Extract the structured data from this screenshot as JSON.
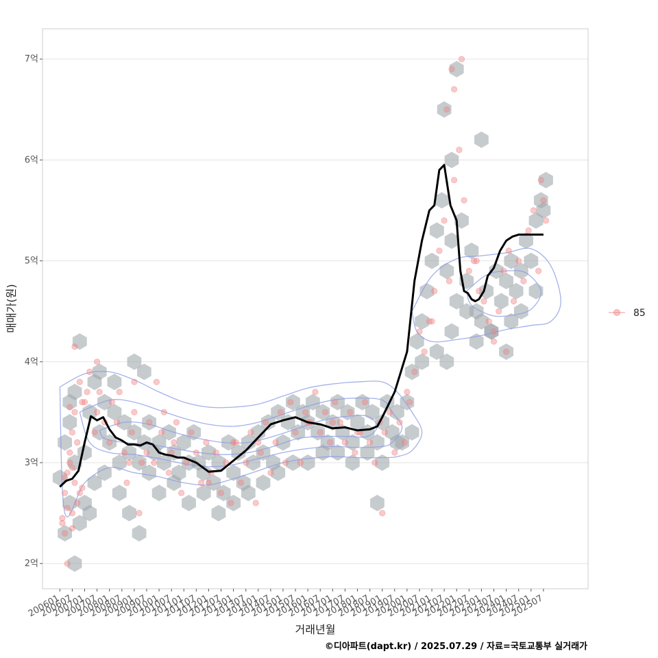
{
  "chart_data": {
    "type": "scatter",
    "xlabel": "거래년월",
    "ylabel": "매매가(원)",
    "caption": "©디아파트(dapt.kr) / 2025.07.29 / 자료=국토교통부 실거래가",
    "x_tick_labels": [
      "200601",
      "200607",
      "200701",
      "200707",
      "200801",
      "200807",
      "200901",
      "200907",
      "201001",
      "201007",
      "201101",
      "201107",
      "201201",
      "201207",
      "201301",
      "201307",
      "201401",
      "201407",
      "201501",
      "201507",
      "201601",
      "201607",
      "201701",
      "201707",
      "201801",
      "201807",
      "201901",
      "201907",
      "202001",
      "202007",
      "202101",
      "202107",
      "202201",
      "202207",
      "202301",
      "202307",
      "202401",
      "202407",
      "202501",
      "202507"
    ],
    "y_ticks": [
      2,
      3,
      4,
      5,
      6,
      7
    ],
    "y_tick_labels": [
      "2억",
      "3억",
      "4억",
      "5억",
      "6억",
      "7억"
    ],
    "y_unit": "억",
    "xlim": [
      2005.3,
      2027.3
    ],
    "ylim": [
      1.75,
      7.3
    ],
    "grid": true,
    "legend": {
      "position": "right",
      "entries": [
        {
          "label": "85",
          "color": "#f08080"
        }
      ]
    },
    "colors": {
      "points": "#f08080",
      "hexbin": "#a0a8ae",
      "contour": "#8c9ee6",
      "trend": "#000000",
      "grid": "#e3e3e3",
      "frame": "#cccccc"
    },
    "trend_line": {
      "x": [
        2006.0,
        2006.25,
        2006.5,
        2006.75,
        2007.0,
        2007.25,
        2007.5,
        2007.75,
        2008.0,
        2008.25,
        2008.5,
        2008.75,
        2009.0,
        2009.25,
        2009.5,
        2009.75,
        2010.0,
        2010.25,
        2010.5,
        2010.75,
        2011.0,
        2011.5,
        2012.0,
        2012.5,
        2012.8,
        2013.0,
        2013.5,
        2014.0,
        2014.5,
        2015.0,
        2015.5,
        2016.0,
        2016.5,
        2017.0,
        2017.5,
        2018.0,
        2018.5,
        2018.8,
        2019.0,
        2019.5,
        2020.0,
        2020.3,
        2020.6,
        2020.9,
        2021.1,
        2021.3,
        2021.5,
        2021.75,
        2022.0,
        2022.15,
        2022.3,
        2022.45,
        2022.6,
        2022.75,
        2022.9,
        2023.1,
        2023.25,
        2023.5,
        2023.75,
        2024.0,
        2024.25,
        2024.5,
        2024.75,
        2025.0,
        2025.25,
        2025.5
      ],
      "y": [
        2.76,
        2.82,
        2.84,
        2.92,
        3.2,
        3.46,
        3.42,
        3.45,
        3.33,
        3.25,
        3.22,
        3.18,
        3.18,
        3.17,
        3.2,
        3.18,
        3.1,
        3.08,
        3.07,
        3.05,
        3.05,
        3.0,
        2.91,
        2.92,
        2.98,
        3.02,
        3.12,
        3.25,
        3.38,
        3.42,
        3.45,
        3.4,
        3.38,
        3.34,
        3.35,
        3.32,
        3.33,
        3.36,
        3.45,
        3.7,
        4.1,
        4.8,
        5.2,
        5.5,
        5.55,
        5.9,
        5.95,
        5.55,
        5.4,
        4.9,
        4.7,
        4.68,
        4.62,
        4.6,
        4.62,
        4.7,
        4.85,
        4.93,
        5.1,
        5.2,
        5.24,
        5.26,
        5.26,
        5.26,
        5.26,
        5.26
      ]
    },
    "points": {
      "x": [
        2006.1,
        2006.2,
        2006.3,
        2006.4,
        2006.5,
        2006.6,
        2006.2,
        2006.4,
        2006.5,
        2006.7,
        2006.3,
        2006.6,
        2006.1,
        2006.2,
        2006.4,
        2006.5,
        2006.8,
        2006.9,
        2006.3,
        2006.5,
        2006.7,
        2006.9,
        2006.6,
        2006.8,
        2007.0,
        2007.2,
        2007.4,
        2007.5,
        2007.6,
        2007.8,
        2008.0,
        2008.1,
        2008.3,
        2008.4,
        2008.6,
        2008.7,
        2008.9,
        2009.0,
        2009.2,
        2009.3,
        2009.5,
        2009.6,
        2009.8,
        2009.9,
        2010.1,
        2010.2,
        2010.4,
        2010.6,
        2010.7,
        2010.9,
        2011.1,
        2011.3,
        2011.5,
        2011.7,
        2011.9,
        2012.1,
        2012.3,
        2012.5,
        2012.7,
        2012.9,
        2013.1,
        2013.3,
        2013.5,
        2013.7,
        2013.9,
        2014.1,
        2014.3,
        2014.5,
        2014.7,
        2014.9,
        2015.1,
        2015.3,
        2015.5,
        2015.7,
        2015.9,
        2016.1,
        2016.3,
        2016.5,
        2016.7,
        2016.9,
        2017.1,
        2017.3,
        2017.5,
        2017.7,
        2017.9,
        2018.1,
        2018.3,
        2018.5,
        2018.7,
        2018.9,
        2019.1,
        2019.3,
        2019.5,
        2019.7,
        2019.9,
        2020.1,
        2020.3,
        2020.5,
        2020.7,
        2020.9,
        2021.1,
        2021.3,
        2021.5,
        2021.7,
        2021.9,
        2022.1,
        2022.3,
        2022.5,
        2022.7,
        2022.9,
        2023.1,
        2023.3,
        2023.5,
        2023.7,
        2023.9,
        2024.1,
        2024.3,
        2024.5,
        2024.7,
        2024.9,
        2025.1,
        2025.3,
        2025.5,
        2007.5,
        2009.0,
        2013.0,
        2016.0,
        2019.0,
        2021.6,
        2021.8,
        2022.2,
        2025.4,
        2007.1,
        2008.8,
        2010.5,
        2012.0,
        2014.0,
        2017.0,
        2018.0,
        2020.0,
        2021.0,
        2023.5,
        2024.0,
        2022.8,
        2021.9,
        2025.6
      ],
      "y": [
        2.4,
        2.7,
        2.9,
        3.0,
        2.5,
        2.8,
        2.3,
        3.1,
        3.3,
        2.6,
        2.0,
        3.5,
        2.45,
        2.85,
        3.55,
        2.95,
        2.7,
        3.6,
        2.55,
        2.35,
        3.2,
        2.75,
        4.15,
        3.8,
        3.6,
        3.9,
        3.3,
        3.5,
        3.7,
        3.4,
        3.2,
        3.6,
        3.4,
        3.7,
        3.1,
        2.8,
        3.3,
        3.5,
        2.5,
        3.0,
        3.1,
        3.4,
        3.0,
        3.8,
        3.3,
        3.5,
        2.9,
        3.2,
        3.4,
        2.7,
        3.0,
        3.3,
        3.1,
        2.8,
        3.2,
        2.9,
        3.1,
        2.7,
        3.0,
        2.6,
        3.2,
        2.8,
        3.0,
        3.3,
        2.6,
        3.1,
        3.4,
        2.9,
        3.2,
        3.5,
        3.0,
        3.6,
        3.3,
        3.0,
        3.5,
        3.4,
        3.7,
        3.3,
        3.5,
        3.2,
        3.6,
        3.4,
        3.2,
        3.5,
        3.1,
        3.3,
        3.6,
        3.2,
        3.0,
        3.4,
        3.3,
        3.5,
        3.1,
        3.4,
        3.2,
        3.6,
        3.9,
        4.3,
        4.1,
        4.4,
        4.7,
        5.1,
        5.4,
        4.8,
        5.8,
        6.1,
        5.6,
        4.9,
        5.0,
        4.7,
        4.6,
        4.4,
        4.2,
        4.5,
        4.9,
        5.1,
        4.6,
        5.0,
        4.8,
        5.3,
        5.5,
        4.9,
        5.6,
        4.0,
        3.8,
        3.2,
        3.4,
        2.5,
        6.5,
        6.9,
        7.0,
        5.8,
        3.7,
        3.0,
        3.1,
        2.8,
        3.2,
        3.4,
        3.3,
        3.7,
        4.4,
        4.3,
        4.1,
        5.0,
        6.7,
        5.4
      ]
    },
    "hexbins": {
      "x": [
        2006.0,
        2006.2,
        2006.4,
        2006.6,
        2006.4,
        2006.6,
        2006.8,
        2007.0,
        2007.2,
        2007.4,
        2007.6,
        2007.8,
        2008.0,
        2008.2,
        2008.4,
        2008.6,
        2008.8,
        2009.0,
        2009.2,
        2009.4,
        2009.6,
        2009.8,
        2010.0,
        2010.2,
        2010.4,
        2010.6,
        2010.8,
        2011.0,
        2011.2,
        2011.4,
        2011.6,
        2011.8,
        2012.0,
        2012.2,
        2012.4,
        2012.6,
        2012.8,
        2013.0,
        2013.2,
        2013.4,
        2013.6,
        2013.8,
        2014.0,
        2014.2,
        2014.4,
        2014.6,
        2014.8,
        2015.0,
        2015.2,
        2015.4,
        2015.6,
        2015.8,
        2016.0,
        2016.2,
        2016.4,
        2016.6,
        2016.8,
        2017.0,
        2017.2,
        2017.4,
        2017.6,
        2017.8,
        2018.0,
        2018.2,
        2018.4,
        2018.6,
        2018.8,
        2019.0,
        2019.2,
        2019.4,
        2019.6,
        2019.8,
        2020.0,
        2020.2,
        2020.4,
        2020.6,
        2020.8,
        2021.0,
        2021.2,
        2021.4,
        2021.6,
        2021.8,
        2022.0,
        2022.2,
        2022.4,
        2022.6,
        2022.8,
        2023.0,
        2023.2,
        2023.4,
        2023.6,
        2023.8,
        2024.0,
        2024.2,
        2024.4,
        2024.6,
        2024.8,
        2025.0,
        2025.2,
        2025.4,
        2025.6,
        2006.6,
        2007.0,
        2007.4,
        2007.8,
        2008.4,
        2008.8,
        2009.2,
        2009.6,
        2010.0,
        2010.6,
        2011.2,
        2011.8,
        2012.4,
        2013.0,
        2013.6,
        2014.2,
        2014.8,
        2015.4,
        2016.0,
        2016.6,
        2017.2,
        2017.8,
        2018.4,
        2019.0,
        2019.6,
        2020.2,
        2020.6,
        2021.2,
        2021.8,
        2022.4,
        2022.8,
        2023.4,
        2024.0,
        2024.6,
        2025.2,
        2018.8,
        2006.4,
        2006.8,
        2007.6,
        2008.2,
        2009.0,
        2021.5,
        2022.0,
        2021.8,
        2025.5,
        2024.2,
        2023.0,
        2021.6,
        2006.2,
        2007.2,
        2009.4
      ],
      "y": [
        2.85,
        2.3,
        2.6,
        3.0,
        3.4,
        3.7,
        2.4,
        3.1,
        3.5,
        3.8,
        3.3,
        3.6,
        3.2,
        3.5,
        3.0,
        3.4,
        3.1,
        3.3,
        3.0,
        3.2,
        3.4,
        3.1,
        3.2,
        3.0,
        3.3,
        3.1,
        2.9,
        3.2,
        3.0,
        3.3,
        3.0,
        2.9,
        3.1,
        2.8,
        3.0,
        2.7,
        3.2,
        2.9,
        3.1,
        2.8,
        3.2,
        3.0,
        3.3,
        3.1,
        3.4,
        3.0,
        3.5,
        3.2,
        3.4,
        3.6,
        3.3,
        3.5,
        3.4,
        3.6,
        3.3,
        3.5,
        3.2,
        3.4,
        3.6,
        3.3,
        3.5,
        3.2,
        3.4,
        3.6,
        3.3,
        3.5,
        3.2,
        3.4,
        3.6,
        3.3,
        3.5,
        3.2,
        3.6,
        3.9,
        4.2,
        4.4,
        4.7,
        5.0,
        5.3,
        5.6,
        4.9,
        5.2,
        4.6,
        5.4,
        4.8,
        5.1,
        4.5,
        4.4,
        4.7,
        4.3,
        4.9,
        4.6,
        4.8,
        5.0,
        4.7,
        4.9,
        5.2,
        5.0,
        5.4,
        5.6,
        5.8,
        2.0,
        2.6,
        2.8,
        2.9,
        2.7,
        2.5,
        2.3,
        2.9,
        2.7,
        2.8,
        2.6,
        2.7,
        2.5,
        2.6,
        2.7,
        2.8,
        2.9,
        3.0,
        3.0,
        3.1,
        3.1,
        3.0,
        3.1,
        3.0,
        3.2,
        3.3,
        4.0,
        4.1,
        4.3,
        4.5,
        4.2,
        4.3,
        4.1,
        4.5,
        4.7,
        2.6,
        3.6,
        4.2,
        3.9,
        3.8,
        4.0,
        6.5,
        6.9,
        6.0,
        5.5,
        4.4,
        6.2,
        4.0,
        3.2,
        2.5,
        3.9
      ],
      "radius": 12
    },
    "contours": [
      {
        "x": [
          2006.0,
          2007.0,
          2008.0,
          2009.0,
          2010.0,
          2011.0,
          2012.0,
          2013.0,
          2014.0,
          2015.0,
          2016.0,
          2017.0,
          2018.0,
          2019.0,
          2019.6,
          2020.2,
          2020.6,
          2020.2,
          2019.6,
          2019.0,
          2018.0,
          2017.0,
          2016.0,
          2015.0,
          2014.0,
          2013.0,
          2012.0,
          2011.0,
          2010.0,
          2009.0,
          2008.0,
          2007.0,
          2006.2,
          2006.0
        ],
        "y": [
          3.75,
          3.88,
          3.9,
          3.82,
          3.7,
          3.6,
          3.55,
          3.55,
          3.58,
          3.66,
          3.74,
          3.78,
          3.8,
          3.8,
          3.7,
          3.5,
          3.3,
          3.12,
          3.06,
          3.05,
          3.05,
          3.06,
          3.04,
          3.0,
          2.92,
          2.84,
          2.78,
          2.8,
          2.86,
          2.9,
          2.95,
          2.8,
          2.5,
          3.75
        ]
      },
      {
        "x": [
          2006.8,
          2008.0,
          2009.0,
          2010.0,
          2011.0,
          2012.0,
          2013.0,
          2014.0,
          2015.0,
          2016.0,
          2017.0,
          2018.0,
          2019.0,
          2019.4,
          2019.8,
          2019.4,
          2019.0,
          2018.0,
          2017.0,
          2016.0,
          2015.0,
          2014.0,
          2013.0,
          2012.0,
          2011.0,
          2010.0,
          2009.0,
          2008.0,
          2007.2,
          2006.8
        ],
        "y": [
          3.5,
          3.62,
          3.6,
          3.52,
          3.44,
          3.38,
          3.36,
          3.4,
          3.48,
          3.56,
          3.62,
          3.64,
          3.62,
          3.5,
          3.35,
          3.2,
          3.16,
          3.15,
          3.16,
          3.14,
          3.1,
          3.04,
          2.98,
          2.96,
          2.99,
          3.04,
          3.08,
          3.1,
          3.2,
          3.5
        ]
      },
      {
        "x": [
          2007.6,
          2008.6,
          2009.6,
          2010.6,
          2011.6,
          2012.6,
          2013.6,
          2014.6,
          2015.6,
          2016.6,
          2017.6,
          2018.4,
          2018.8,
          2018.4,
          2017.6,
          2016.6,
          2015.6,
          2014.6,
          2013.6,
          2012.6,
          2011.6,
          2010.6,
          2009.6,
          2008.6,
          2007.8,
          2007.6
        ],
        "y": [
          3.32,
          3.4,
          3.38,
          3.3,
          3.24,
          3.2,
          3.2,
          3.26,
          3.34,
          3.42,
          3.46,
          3.46,
          3.36,
          3.26,
          3.26,
          3.26,
          3.24,
          3.16,
          3.1,
          3.08,
          3.1,
          3.14,
          3.18,
          3.2,
          3.24,
          3.32
        ]
      },
      {
        "x": [
          2020.2,
          2021.0,
          2022.0,
          2023.0,
          2024.0,
          2025.0,
          2025.8,
          2026.2,
          2025.8,
          2025.0,
          2024.0,
          2023.0,
          2022.0,
          2021.0,
          2020.4,
          2020.2
        ],
        "y": [
          4.5,
          4.85,
          5.02,
          5.05,
          5.08,
          5.12,
          4.95,
          4.6,
          4.4,
          4.36,
          4.32,
          4.26,
          4.22,
          4.2,
          4.3,
          4.5
        ]
      },
      {
        "x": [
          2022.4,
          2023.2,
          2024.0,
          2024.8,
          2025.4,
          2025.0,
          2024.2,
          2023.4,
          2022.6,
          2022.4
        ],
        "y": [
          4.7,
          4.86,
          4.9,
          4.88,
          4.7,
          4.52,
          4.46,
          4.46,
          4.56,
          4.7
        ]
      }
    ]
  }
}
